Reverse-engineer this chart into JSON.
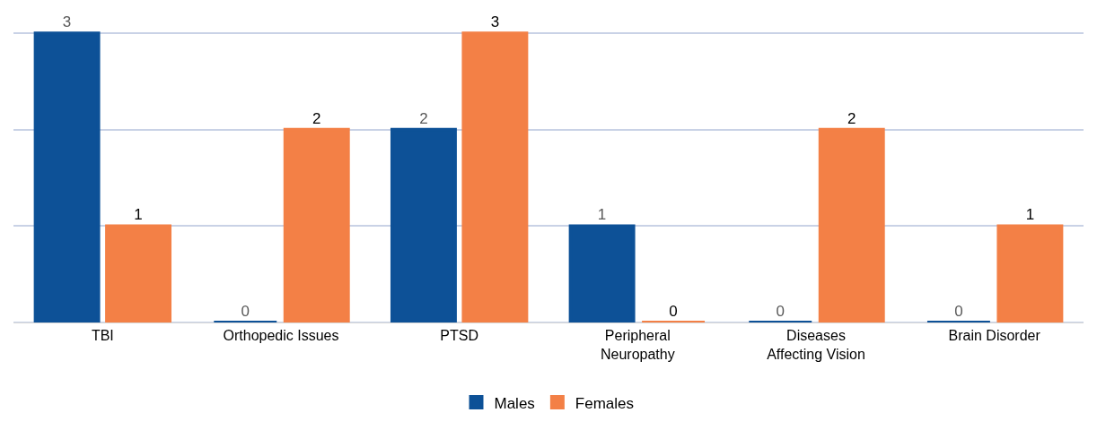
{
  "chart_data": {
    "type": "bar",
    "categories": [
      "TBI",
      "Orthopedic Issues",
      "PTSD",
      "Peripheral Neuropathy",
      "Diseases Affecting Vision",
      "Brain Disorder"
    ],
    "series": [
      {
        "name": "Males",
        "color": "#0d5197",
        "values": [
          3,
          0,
          2,
          1,
          0,
          0
        ]
      },
      {
        "name": "Females",
        "color": "#f38046",
        "values": [
          1,
          2,
          3,
          0,
          2,
          1
        ]
      }
    ],
    "ylim": [
      0,
      3.02
    ],
    "yticks": [
      {
        "value": 0,
        "label": null
      },
      {
        "value": 1,
        "label": null
      },
      {
        "value": 2,
        "label": null
      },
      {
        "value": 3,
        "label": null
      }
    ],
    "tick_labels": "x",
    "grid": "y",
    "legend": "bottom",
    "data_labels": true
  }
}
